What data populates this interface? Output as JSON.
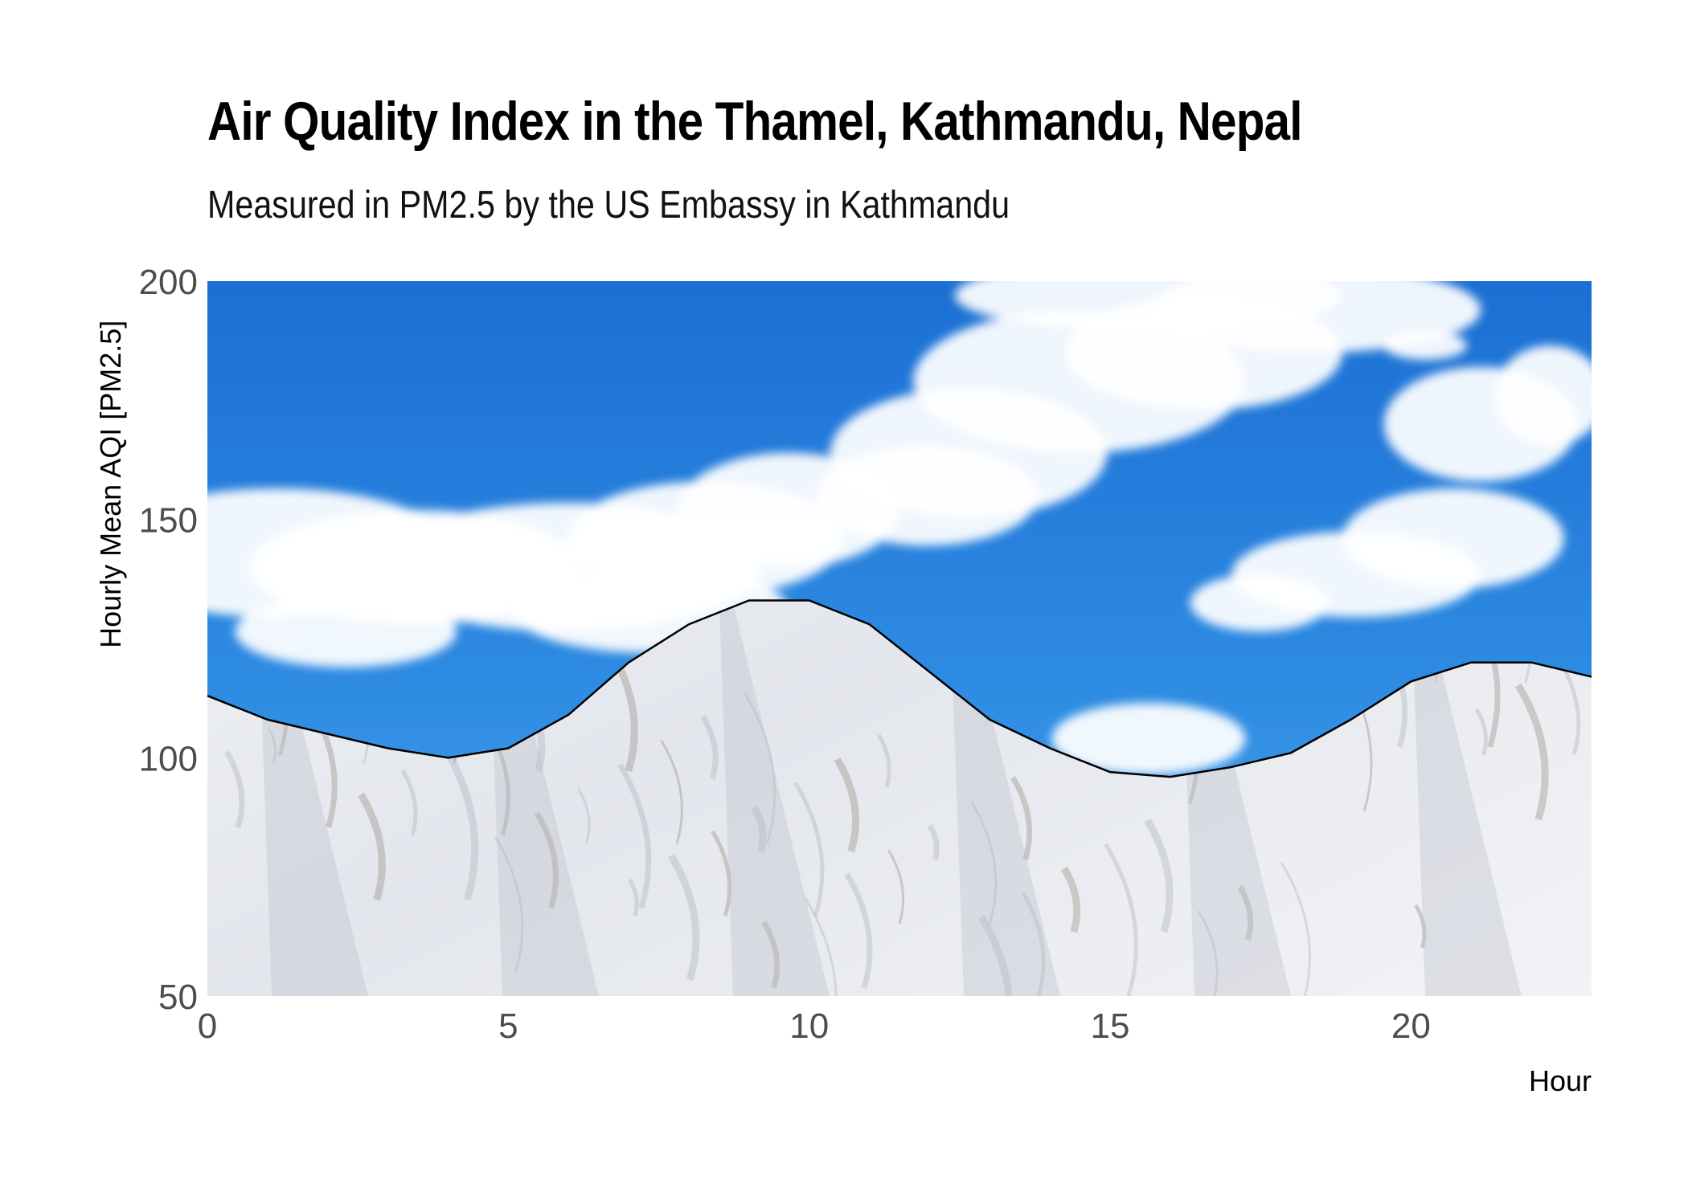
{
  "chart_data": {
    "type": "area",
    "title": "Air Quality Index in the Thamel, Kathmandu, Nepal",
    "subtitle": "Measured in PM2.5 by the US Embassy in Kathmandu",
    "xlabel": "Hour",
    "ylabel": "Hourly Mean AQI [PM2.5]",
    "xlim": [
      0,
      23
    ],
    "ylim": [
      50,
      200
    ],
    "xticks": [
      0,
      5,
      10,
      15,
      20
    ],
    "yticks": [
      50,
      100,
      150,
      200
    ],
    "grid": false,
    "legend": "none",
    "background": "photo of snow-capped mountains under blue sky with clouds",
    "x": [
      0,
      1,
      2,
      3,
      4,
      5,
      6,
      7,
      8,
      9,
      10,
      11,
      12,
      13,
      14,
      15,
      16,
      17,
      18,
      19,
      20,
      21,
      22,
      23
    ],
    "values": [
      113,
      108,
      105,
      102,
      100,
      102,
      109,
      120,
      128,
      133,
      133,
      128,
      118,
      108,
      102,
      97,
      96,
      98,
      101,
      108,
      116,
      120,
      120,
      117
    ],
    "colors": {
      "line": "#000000",
      "sky_top": "#1c73d6",
      "sky_bottom": "#4aa3ea",
      "cloud": "#ffffff",
      "snow": "#eceff4",
      "rock": "#8e8378"
    }
  }
}
